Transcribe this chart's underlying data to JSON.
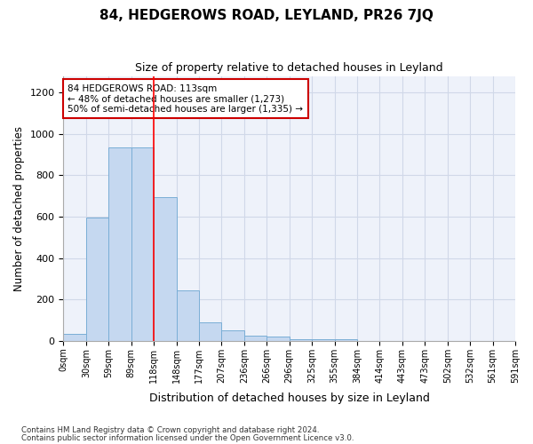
{
  "title": "84, HEDGEROWS ROAD, LEYLAND, PR26 7JQ",
  "subtitle": "Size of property relative to detached houses in Leyland",
  "xlabel": "Distribution of detached houses by size in Leyland",
  "ylabel": "Number of detached properties",
  "bin_labels": [
    "0sqm",
    "30sqm",
    "59sqm",
    "89sqm",
    "118sqm",
    "148sqm",
    "177sqm",
    "207sqm",
    "236sqm",
    "266sqm",
    "296sqm",
    "325sqm",
    "355sqm",
    "384sqm",
    "414sqm",
    "443sqm",
    "473sqm",
    "502sqm",
    "532sqm",
    "561sqm",
    "591sqm"
  ],
  "bar_heights": [
    35,
    595,
    935,
    935,
    695,
    245,
    90,
    50,
    25,
    20,
    10,
    10,
    10,
    0,
    0,
    0,
    0,
    0,
    0,
    0
  ],
  "bar_color": "#c5d8f0",
  "bar_edge_color": "#7aaed6",
  "grid_color": "#d0d8e8",
  "annotation_text": "84 HEDGEROWS ROAD: 113sqm\n← 48% of detached houses are smaller (1,273)\n50% of semi-detached houses are larger (1,335) →",
  "annotation_box_color": "#cc0000",
  "ylim": [
    0,
    1280
  ],
  "yticks": [
    0,
    200,
    400,
    600,
    800,
    1000,
    1200
  ],
  "prop_bin_index": 4,
  "footnote_line1": "Contains HM Land Registry data © Crown copyright and database right 2024.",
  "footnote_line2": "Contains public sector information licensed under the Open Government Licence v3.0.",
  "bg_color": "#eef2fa"
}
